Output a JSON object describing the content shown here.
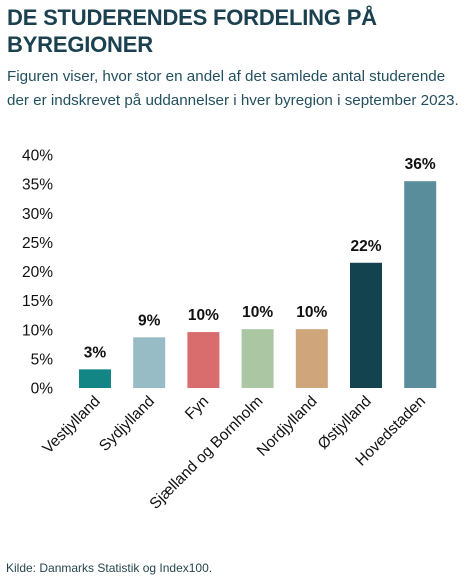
{
  "title": "DE STUDERENDES FORDELING PÅ BYREGIONER",
  "subtitle": "Figuren viser, hvor stor en andel af det samlede antal studerende der er indskrevet på uddannelser i hver byregion i september 2023.",
  "source": "Kilde: Danmarks Statistik og Index100.",
  "chart_data": {
    "type": "bar",
    "title": "",
    "xlabel": "",
    "ylabel": "",
    "ylim": [
      0,
      40
    ],
    "y_ticks": [
      0,
      5,
      10,
      15,
      20,
      25,
      30,
      35,
      40
    ],
    "y_tick_labels": [
      "0%",
      "5%",
      "10%",
      "15%",
      "20%",
      "25%",
      "30%",
      "35%",
      "40%"
    ],
    "grid": false,
    "categories": [
      "Vestjylland",
      "Sydjylland",
      "Fyn",
      "Sjælland og Bornholm",
      "Nordjylland",
      "Østjylland",
      "Hovedstaden"
    ],
    "values": [
      3.2,
      8.7,
      9.6,
      10.1,
      10.1,
      21.5,
      35.5
    ],
    "data_labels": [
      "3%",
      "9%",
      "10%",
      "10%",
      "10%",
      "22%",
      "36%"
    ],
    "colors": [
      "#128684",
      "#98bcc6",
      "#d96d6d",
      "#abc6a3",
      "#cfa57b",
      "#12434f",
      "#5a8d9b"
    ]
  }
}
